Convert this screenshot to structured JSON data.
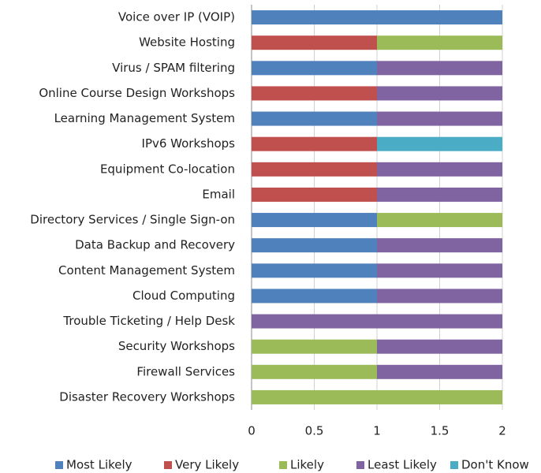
{
  "chart_data": {
    "type": "stacked_bar_horizontal",
    "categories": [
      "Voice over IP (VOIP)",
      "Website Hosting",
      "Virus / SPAM filtering",
      "Online Course Design Workshops",
      "Learning Management System",
      "IPv6 Workshops",
      "Equipment Co-location",
      "Email",
      "Directory Services / Single Sign-on",
      "Data Backup and Recovery",
      "Content Management System",
      "Cloud Computing",
      "Trouble Ticketing / Help Desk",
      "Security Workshops",
      "Firewall Services",
      "Disaster Recovery Workshops"
    ],
    "series": [
      {
        "name": "Most Likely",
        "color": "#4f81bd",
        "values": [
          2,
          0,
          1,
          0,
          1,
          0,
          0,
          0,
          1,
          1,
          1,
          1,
          0,
          0,
          0,
          0
        ]
      },
      {
        "name": "Very Likely",
        "color": "#c0504d",
        "values": [
          0,
          1,
          0,
          1,
          0,
          1,
          1,
          1,
          0,
          0,
          0,
          0,
          0,
          0,
          0,
          0
        ]
      },
      {
        "name": "Likely",
        "color": "#9bbb59",
        "values": [
          0,
          1,
          0,
          0,
          0,
          0,
          0,
          0,
          1,
          0,
          0,
          0,
          0,
          1,
          1,
          2
        ]
      },
      {
        "name": "Least Likely",
        "color": "#8064a2",
        "values": [
          0,
          0,
          1,
          1,
          1,
          0,
          1,
          1,
          0,
          1,
          1,
          1,
          2,
          1,
          1,
          0
        ]
      },
      {
        "name": "Don't Know",
        "color": "#4bacc6",
        "values": [
          0,
          0,
          0,
          0,
          0,
          1,
          0,
          0,
          0,
          0,
          0,
          0,
          0,
          0,
          0,
          0
        ]
      }
    ],
    "xlim": [
      0,
      2
    ],
    "xticks": [
      0,
      0.5,
      1,
      1.5,
      2
    ],
    "grid": true,
    "legend": "bottom"
  }
}
